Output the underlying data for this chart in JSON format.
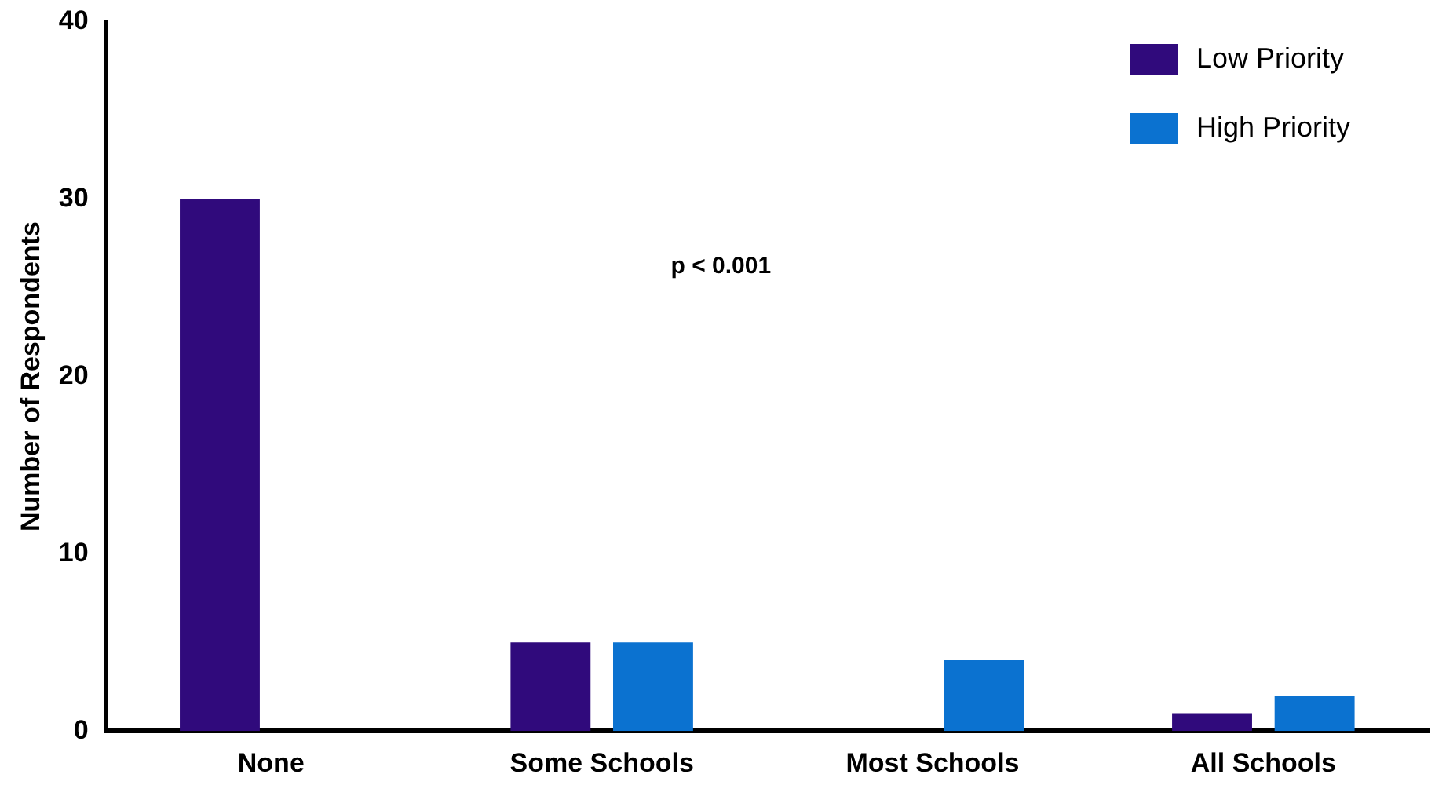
{
  "chart_data": {
    "type": "bar",
    "ylabel": "Number of Respondents",
    "categories": [
      "None",
      "Some Schools",
      "Most Schools",
      "All Schools"
    ],
    "series": [
      {
        "name": "Low Priority",
        "color": "#300a7c",
        "values": [
          30,
          5,
          0,
          1
        ]
      },
      {
        "name": "High Priority",
        "color": "#0b72d0",
        "values": [
          0,
          5,
          4,
          2
        ]
      }
    ],
    "ylim": [
      0,
      40
    ],
    "yticks": [
      0,
      10,
      20,
      30,
      40
    ],
    "grid": false,
    "legend": "top right",
    "annotations": [
      "p < 0.001"
    ]
  }
}
